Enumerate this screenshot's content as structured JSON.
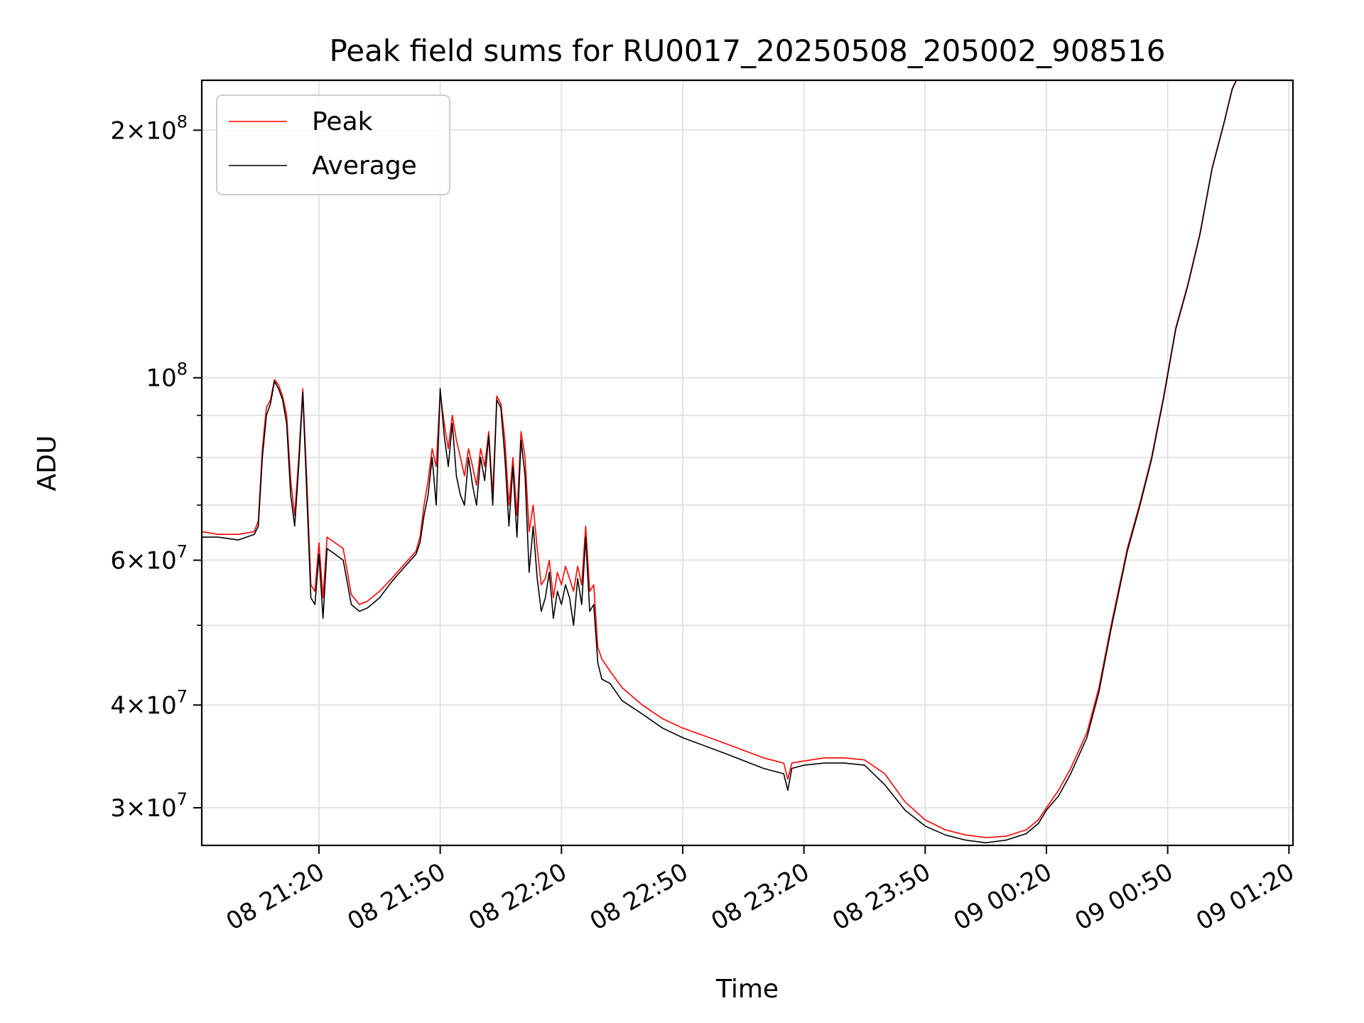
{
  "chart_data": {
    "type": "line",
    "title": "Peak field sums for RU0017_20250508_205002_908516",
    "xlabel": "Time",
    "ylabel": "ADU",
    "y_scale": "log",
    "ylim": [
      27000000,
      230000000
    ],
    "xlim": [
      "2025-05-08 20:51",
      "2025-05-09 01:21"
    ],
    "grid": true,
    "legend_position": "top-left",
    "x_ticks": [
      {
        "t": "2025-05-08 21:20",
        "label": "08 21:20"
      },
      {
        "t": "2025-05-08 21:50",
        "label": "08 21:50"
      },
      {
        "t": "2025-05-08 22:20",
        "label": "08 22:20"
      },
      {
        "t": "2025-05-08 22:50",
        "label": "08 22:50"
      },
      {
        "t": "2025-05-08 23:20",
        "label": "08 23:20"
      },
      {
        "t": "2025-05-08 23:50",
        "label": "08 23:50"
      },
      {
        "t": "2025-05-09 00:20",
        "label": "09 00:20"
      },
      {
        "t": "2025-05-09 00:50",
        "label": "09 00:50"
      },
      {
        "t": "2025-05-09 01:20",
        "label": "09 01:20"
      }
    ],
    "y_major_ticks": [
      {
        "value": 30000000,
        "base": "3",
        "exp": "7"
      },
      {
        "value": 40000000,
        "base": "4",
        "exp": "7"
      },
      {
        "value": 60000000,
        "base": "6",
        "exp": "7"
      },
      {
        "value": 100000000,
        "base": "",
        "exp": "8"
      },
      {
        "value": 200000000,
        "base": "2",
        "exp": "8"
      }
    ],
    "y_minor_ticks": [
      50000000,
      70000000,
      80000000,
      90000000
    ],
    "series": [
      {
        "name": "Peak",
        "color": "#ff0000",
        "x": [
          "2025-05-08 20:51",
          "2025-05-08 20:55",
          "2025-05-08 21:00",
          "2025-05-08 21:04",
          "2025-05-08 21:05",
          "2025-05-08 21:06",
          "2025-05-08 21:07",
          "2025-05-08 21:08",
          "2025-05-08 21:09",
          "2025-05-08 21:10",
          "2025-05-08 21:11",
          "2025-05-08 21:12",
          "2025-05-08 21:13",
          "2025-05-08 21:14",
          "2025-05-08 21:15",
          "2025-05-08 21:16",
          "2025-05-08 21:17",
          "2025-05-08 21:18",
          "2025-05-08 21:19",
          "2025-05-08 21:20",
          "2025-05-08 21:21",
          "2025-05-08 21:22",
          "2025-05-08 21:24",
          "2025-05-08 21:26",
          "2025-05-08 21:28",
          "2025-05-08 21:30",
          "2025-05-08 21:32",
          "2025-05-08 21:35",
          "2025-05-08 21:38",
          "2025-05-08 21:40",
          "2025-05-08 21:42",
          "2025-05-08 21:44",
          "2025-05-08 21:45",
          "2025-05-08 21:46",
          "2025-05-08 21:47",
          "2025-05-08 21:48",
          "2025-05-08 21:49",
          "2025-05-08 21:50",
          "2025-05-08 21:51",
          "2025-05-08 21:52",
          "2025-05-08 21:53",
          "2025-05-08 21:54",
          "2025-05-08 21:55",
          "2025-05-08 21:56",
          "2025-05-08 21:57",
          "2025-05-08 21:58",
          "2025-05-08 21:59",
          "2025-05-08 22:00",
          "2025-05-08 22:01",
          "2025-05-08 22:02",
          "2025-05-08 22:03",
          "2025-05-08 22:04",
          "2025-05-08 22:05",
          "2025-05-08 22:06",
          "2025-05-08 22:07",
          "2025-05-08 22:08",
          "2025-05-08 22:09",
          "2025-05-08 22:10",
          "2025-05-08 22:11",
          "2025-05-08 22:12",
          "2025-05-08 22:13",
          "2025-05-08 22:14",
          "2025-05-08 22:15",
          "2025-05-08 22:16",
          "2025-05-08 22:17",
          "2025-05-08 22:18",
          "2025-05-08 22:19",
          "2025-05-08 22:20",
          "2025-05-08 22:21",
          "2025-05-08 22:22",
          "2025-05-08 22:23",
          "2025-05-08 22:24",
          "2025-05-08 22:25",
          "2025-05-08 22:26",
          "2025-05-08 22:27",
          "2025-05-08 22:28",
          "2025-05-08 22:29",
          "2025-05-08 22:30",
          "2025-05-08 22:32",
          "2025-05-08 22:35",
          "2025-05-08 22:40",
          "2025-05-08 22:45",
          "2025-05-08 22:50",
          "2025-05-08 23:00",
          "2025-05-08 23:10",
          "2025-05-08 23:15",
          "2025-05-08 23:16",
          "2025-05-08 23:17",
          "2025-05-08 23:20",
          "2025-05-08 23:25",
          "2025-05-08 23:30",
          "2025-05-08 23:35",
          "2025-05-08 23:40",
          "2025-05-08 23:45",
          "2025-05-08 23:50",
          "2025-05-08 23:55",
          "2025-05-09 00:00",
          "2025-05-09 00:05",
          "2025-05-09 00:10",
          "2025-05-09 00:15",
          "2025-05-09 00:18",
          "2025-05-09 00:20",
          "2025-05-09 00:23",
          "2025-05-09 00:26",
          "2025-05-09 00:30",
          "2025-05-09 00:33",
          "2025-05-09 00:36",
          "2025-05-09 00:40",
          "2025-05-09 00:43",
          "2025-05-09 00:46",
          "2025-05-09 00:49",
          "2025-05-09 00:52",
          "2025-05-09 00:55",
          "2025-05-09 00:58",
          "2025-05-09 01:01",
          "2025-05-09 01:04",
          "2025-05-09 01:05",
          "2025-05-09 01:06",
          "2025-05-09 01:07"
        ],
        "y": [
          65000000,
          64500000,
          64500000,
          65000000,
          67000000,
          82000000,
          92000000,
          94000000,
          99500000,
          98000000,
          95000000,
          90000000,
          75000000,
          68000000,
          80000000,
          97000000,
          75000000,
          56000000,
          55000000,
          63000000,
          54000000,
          64000000,
          63000000,
          62000000,
          54500000,
          53000000,
          53500000,
          55000000,
          57000000,
          58500000,
          60000000,
          61500000,
          64000000,
          70000000,
          75000000,
          82000000,
          78000000,
          96000000,
          88000000,
          82000000,
          90000000,
          84000000,
          80000000,
          76000000,
          82000000,
          78000000,
          74000000,
          82000000,
          78000000,
          86000000,
          72000000,
          95000000,
          93000000,
          84000000,
          70000000,
          80000000,
          68000000,
          86000000,
          80000000,
          65000000,
          70000000,
          62000000,
          56000000,
          57000000,
          60000000,
          54000000,
          58000000,
          56000000,
          59000000,
          57000000,
          55000000,
          59000000,
          56000000,
          66000000,
          55000000,
          56000000,
          47000000,
          45500000,
          44000000,
          42000000,
          40000000,
          38500000,
          37500000,
          36000000,
          34500000,
          34000000,
          32500000,
          34000000,
          34200000,
          34500000,
          34500000,
          34300000,
          33000000,
          30500000,
          29000000,
          28200000,
          27800000,
          27600000,
          27700000,
          28200000,
          29000000,
          30000000,
          31500000,
          33500000,
          37000000,
          42000000,
          50000000,
          62000000,
          70000000,
          80000000,
          95000000,
          115000000,
          130000000,
          150000000,
          180000000,
          205000000,
          215000000,
          225000000,
          230000000
        ]
      },
      {
        "name": "Average",
        "color": "#000000",
        "x": [
          "2025-05-08 20:51",
          "2025-05-08 20:55",
          "2025-05-08 21:00",
          "2025-05-08 21:04",
          "2025-05-08 21:05",
          "2025-05-08 21:06",
          "2025-05-08 21:07",
          "2025-05-08 21:08",
          "2025-05-08 21:09",
          "2025-05-08 21:10",
          "2025-05-08 21:11",
          "2025-05-08 21:12",
          "2025-05-08 21:13",
          "2025-05-08 21:14",
          "2025-05-08 21:15",
          "2025-05-08 21:16",
          "2025-05-08 21:17",
          "2025-05-08 21:18",
          "2025-05-08 21:19",
          "2025-05-08 21:20",
          "2025-05-08 21:21",
          "2025-05-08 21:22",
          "2025-05-08 21:24",
          "2025-05-08 21:26",
          "2025-05-08 21:28",
          "2025-05-08 21:30",
          "2025-05-08 21:32",
          "2025-05-08 21:35",
          "2025-05-08 21:38",
          "2025-05-08 21:40",
          "2025-05-08 21:42",
          "2025-05-08 21:44",
          "2025-05-08 21:45",
          "2025-05-08 21:46",
          "2025-05-08 21:47",
          "2025-05-08 21:48",
          "2025-05-08 21:49",
          "2025-05-08 21:50",
          "2025-05-08 21:51",
          "2025-05-08 21:52",
          "2025-05-08 21:53",
          "2025-05-08 21:54",
          "2025-05-08 21:55",
          "2025-05-08 21:56",
          "2025-05-08 21:57",
          "2025-05-08 21:58",
          "2025-05-08 21:59",
          "2025-05-08 22:00",
          "2025-05-08 22:01",
          "2025-05-08 22:02",
          "2025-05-08 22:03",
          "2025-05-08 22:04",
          "2025-05-08 22:05",
          "2025-05-08 22:06",
          "2025-05-08 22:07",
          "2025-05-08 22:08",
          "2025-05-08 22:09",
          "2025-05-08 22:10",
          "2025-05-08 22:11",
          "2025-05-08 22:12",
          "2025-05-08 22:13",
          "2025-05-08 22:14",
          "2025-05-08 22:15",
          "2025-05-08 22:16",
          "2025-05-08 22:17",
          "2025-05-08 22:18",
          "2025-05-08 22:19",
          "2025-05-08 22:20",
          "2025-05-08 22:21",
          "2025-05-08 22:22",
          "2025-05-08 22:23",
          "2025-05-08 22:24",
          "2025-05-08 22:25",
          "2025-05-08 22:26",
          "2025-05-08 22:27",
          "2025-05-08 22:28",
          "2025-05-08 22:29",
          "2025-05-08 22:30",
          "2025-05-08 22:32",
          "2025-05-08 22:35",
          "2025-05-08 22:40",
          "2025-05-08 22:45",
          "2025-05-08 22:50",
          "2025-05-08 23:00",
          "2025-05-08 23:10",
          "2025-05-08 23:15",
          "2025-05-08 23:16",
          "2025-05-08 23:17",
          "2025-05-08 23:20",
          "2025-05-08 23:25",
          "2025-05-08 23:30",
          "2025-05-08 23:35",
          "2025-05-08 23:40",
          "2025-05-08 23:45",
          "2025-05-08 23:50",
          "2025-05-08 23:55",
          "2025-05-09 00:00",
          "2025-05-09 00:05",
          "2025-05-09 00:10",
          "2025-05-09 00:15",
          "2025-05-09 00:18",
          "2025-05-09 00:20",
          "2025-05-09 00:23",
          "2025-05-09 00:26",
          "2025-05-09 00:30",
          "2025-05-09 00:33",
          "2025-05-09 00:36",
          "2025-05-09 00:40",
          "2025-05-09 00:43",
          "2025-05-09 00:46",
          "2025-05-09 00:49",
          "2025-05-09 00:52",
          "2025-05-09 00:55",
          "2025-05-09 00:58",
          "2025-05-09 01:01",
          "2025-05-09 01:04",
          "2025-05-09 01:05",
          "2025-05-09 01:06",
          "2025-05-09 01:07"
        ],
        "y": [
          64000000,
          64000000,
          63500000,
          64500000,
          66000000,
          80000000,
          90000000,
          93000000,
          99000000,
          97000000,
          94000000,
          88000000,
          72000000,
          66000000,
          78000000,
          96000000,
          72000000,
          54000000,
          53000000,
          61000000,
          51000000,
          62000000,
          61000000,
          60000000,
          53000000,
          52000000,
          52500000,
          54000000,
          56500000,
          58000000,
          59500000,
          61000000,
          63000000,
          68000000,
          72000000,
          80000000,
          70000000,
          97000000,
          85000000,
          78000000,
          88000000,
          76000000,
          72000000,
          70000000,
          80000000,
          74000000,
          70000000,
          80000000,
          75000000,
          85000000,
          70000000,
          94000000,
          92000000,
          80000000,
          66000000,
          78000000,
          64000000,
          84000000,
          76000000,
          58000000,
          66000000,
          57000000,
          52000000,
          54000000,
          58000000,
          51000000,
          55000000,
          53000000,
          56000000,
          54000000,
          50000000,
          57000000,
          53000000,
          64000000,
          52000000,
          53000000,
          45000000,
          43000000,
          42500000,
          40500000,
          39000000,
          37500000,
          36500000,
          35000000,
          33500000,
          33000000,
          31500000,
          33500000,
          33800000,
          34000000,
          34000000,
          33800000,
          32000000,
          29800000,
          28500000,
          27800000,
          27400000,
          27200000,
          27400000,
          27900000,
          28700000,
          29800000,
          31000000,
          33000000,
          36500000,
          41500000,
          49500000,
          61500000,
          69500000,
          79500000,
          94500000,
          114500000,
          129500000,
          149500000,
          179500000,
          204500000,
          214500000,
          224500000,
          230000000
        ]
      }
    ]
  }
}
